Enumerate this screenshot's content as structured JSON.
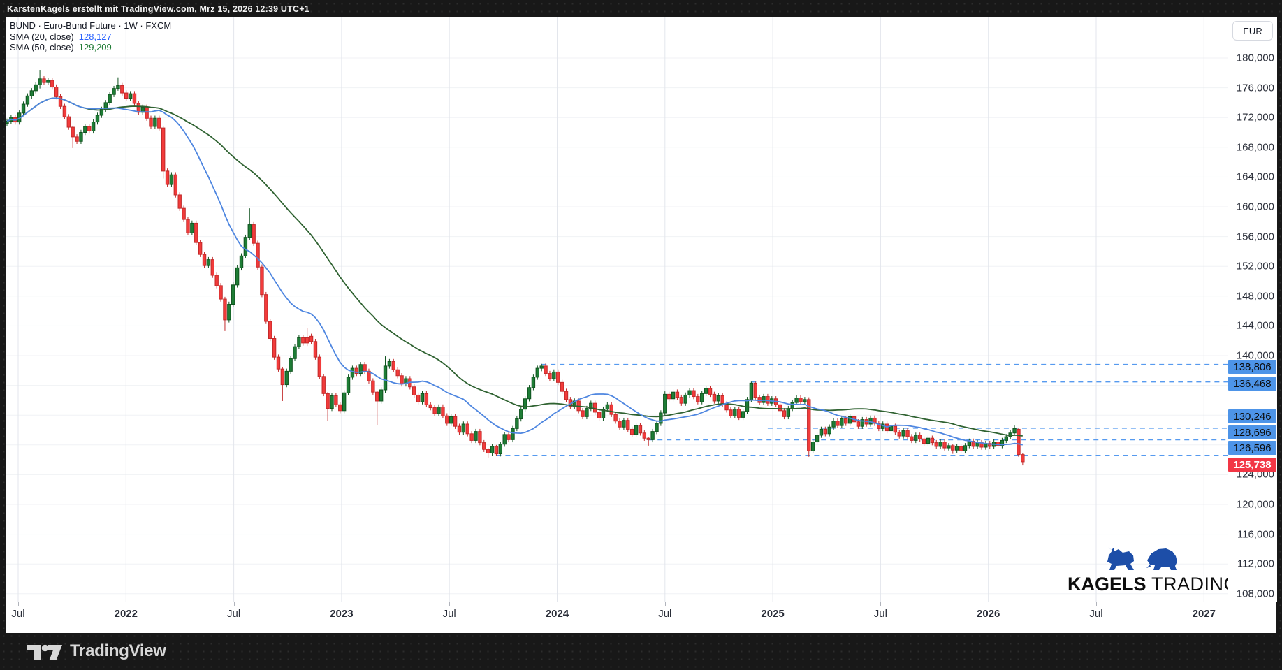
{
  "frame": {
    "top_caption": "KarstenKagels erstellt mit TradingView.com, Mrz 15, 2026 12:39 UTC+1",
    "tradingview_wordmark": "TradingView"
  },
  "legend": {
    "symbol_line": "BUND · Euro-Bund Future · 1W · FXCM",
    "sma20_label": "SMA (20, close)",
    "sma20_value": "128,127",
    "sma50_label": "SMA (50, close)",
    "sma50_value": "129,209"
  },
  "price_axis": {
    "currency_button": "EUR",
    "tick_labels": [
      "180,000",
      "176,000",
      "172,000",
      "168,000",
      "164,000",
      "160,000",
      "156,000",
      "152,000",
      "148,000",
      "144,000",
      "140,000",
      "136,000",
      "132,000",
      "128,000",
      "124,000",
      "120,000",
      "116,000",
      "112,000",
      "108,000"
    ]
  },
  "time_axis": {
    "labels": [
      "Jul",
      "2022",
      "Jul",
      "2023",
      "Jul",
      "2024",
      "Jul",
      "2025",
      "Jul",
      "2026",
      "Jul",
      "2027"
    ],
    "bold_flags": [
      false,
      true,
      false,
      true,
      false,
      true,
      false,
      true,
      false,
      true,
      false,
      true
    ]
  },
  "branding": {
    "brand_bold": "KAGELS",
    "brand_light": "TRADING"
  },
  "colors": {
    "up_fill": "#1e7d36",
    "up_border": "#10541f",
    "down_fill": "#f23b3b",
    "down_border": "#c22a2a",
    "sma20": "#4e86e0",
    "sma50": "#2f6231",
    "level_line": "#569aef",
    "level_label_bg": "#4d94e8",
    "level_label_text": "#0c0c0c",
    "last_label_bg": "#f23645",
    "last_label_text": "#ffffff",
    "grid_vertical": "#e3e6ec",
    "grid_horizontal": "#f0f2f5",
    "brand_blue": "#1d4ea8"
  },
  "chart_data": {
    "type": "candlestick",
    "symbol": "BUND Euro-Bund Future",
    "interval": "1W",
    "exchange": "FXCM",
    "unit": "EUR",
    "y_axis": {
      "top_tick": 180.0,
      "bottom_tick": 108.0,
      "tick_step": 4.0,
      "grid": true
    },
    "x_axis": {
      "first_label": "Jul 2021",
      "last_label": "2027",
      "grid": true
    },
    "first_open": 171.2,
    "default_wick": 0.35,
    "closes": [
      171.5,
      172.0,
      171.4,
      172.6,
      173.8,
      174.9,
      175.6,
      176.4,
      177.2,
      176.7,
      177.0,
      176.1,
      174.8,
      173.5,
      172.1,
      170.7,
      169.4,
      168.8,
      170.0,
      170.8,
      170.2,
      171.4,
      172.3,
      173.1,
      174.0,
      175.1,
      175.9,
      176.3,
      175.3,
      174.6,
      175.2,
      173.9,
      172.7,
      173.4,
      171.9,
      170.8,
      171.9,
      170.6,
      164.8,
      163.0,
      164.3,
      161.6,
      159.8,
      158.3,
      156.5,
      157.8,
      155.2,
      153.6,
      152.1,
      152.9,
      150.8,
      149.4,
      147.6,
      144.8,
      146.9,
      149.5,
      151.8,
      153.4,
      155.9,
      157.6,
      155.1,
      151.9,
      148.2,
      144.6,
      142.3,
      139.8,
      138.2,
      136.1,
      137.9,
      139.6,
      141.2,
      142.4,
      141.7,
      142.6,
      141.9,
      139.8,
      137.2,
      134.9,
      132.9,
      134.6,
      133.4,
      132.6,
      135.0,
      137.1,
      138.3,
      137.6,
      138.8,
      137.9,
      136.6,
      135.1,
      133.9,
      135.4,
      138.6,
      139.2,
      138.1,
      137.3,
      136.2,
      136.9,
      135.8,
      134.7,
      133.8,
      134.9,
      133.4,
      133.0,
      132.2,
      133.1,
      131.9,
      130.9,
      131.8,
      130.5,
      129.7,
      130.8,
      129.5,
      128.6,
      129.8,
      128.3,
      127.4,
      126.9,
      127.8,
      126.8,
      128.1,
      129.4,
      128.7,
      130.2,
      131.5,
      132.8,
      134.2,
      135.7,
      137.1,
      138.3,
      138.6,
      137.6,
      136.9,
      137.8,
      136.4,
      135.2,
      134.1,
      133.2,
      133.9,
      132.6,
      131.8,
      132.9,
      133.6,
      132.4,
      131.6,
      132.8,
      133.4,
      132.1,
      131.2,
      130.4,
      131.3,
      130.1,
      129.4,
      130.6,
      129.6,
      128.9,
      128.7,
      129.8,
      130.9,
      132.3,
      134.8,
      134.2,
      135.1,
      134.4,
      133.6,
      134.7,
      135.3,
      134.5,
      133.8,
      134.9,
      135.6,
      134.8,
      133.9,
      134.6,
      133.5,
      132.7,
      131.9,
      132.8,
      131.7,
      132.5,
      134.1,
      136.3,
      134.4,
      133.7,
      134.5,
      133.6,
      134.2,
      133.4,
      132.6,
      131.8,
      132.9,
      133.7,
      134.3,
      133.8,
      134.1,
      127.2,
      128.4,
      129.3,
      130.1,
      129.5,
      130.4,
      131.2,
      130.6,
      131.5,
      130.9,
      131.8,
      131.1,
      130.5,
      131.4,
      130.8,
      131.6,
      130.9,
      130.2,
      130.8,
      129.9,
      130.5,
      129.7,
      129.2,
      129.9,
      129.1,
      128.6,
      129.3,
      128.8,
      128.2,
      128.9,
      128.3,
      127.8,
      128.4,
      127.6,
      127.9,
      127.3,
      127.8,
      127.2,
      127.9,
      128.5,
      127.8,
      128.3,
      127.7,
      128.2,
      127.8,
      128.4,
      127.9,
      128.6,
      129.1,
      129.6,
      130.2,
      126.7,
      125.738
    ],
    "candle_overrides": {
      "8": [
        176.4,
        178.4,
        175.9,
        177.2
      ],
      "16": [
        170.7,
        170.9,
        167.9,
        169.4
      ],
      "27": [
        175.9,
        177.4,
        175.6,
        176.3
      ],
      "38": [
        170.6,
        170.9,
        163.8,
        164.8
      ],
      "53": [
        147.6,
        147.9,
        143.3,
        144.8
      ],
      "59": [
        155.9,
        159.8,
        155.5,
        157.6
      ],
      "67": [
        138.2,
        138.5,
        133.9,
        136.1
      ],
      "73": [
        142.4,
        143.7,
        141.3,
        141.7
      ],
      "78": [
        134.9,
        135.1,
        131.2,
        132.9
      ],
      "90": [
        135.1,
        135.3,
        130.7,
        133.9
      ],
      "92": [
        135.4,
        139.9,
        135.0,
        138.6
      ],
      "117": [
        127.4,
        127.6,
        126.3,
        126.9
      ],
      "119": [
        127.8,
        128.0,
        126.5,
        126.8
      ],
      "130": [
        138.3,
        138.9,
        137.9,
        138.6
      ],
      "156": [
        128.9,
        129.1,
        127.9,
        128.7
      ],
      "160": [
        132.3,
        135.2,
        132.0,
        134.8
      ],
      "181": [
        134.1,
        136.5,
        133.8,
        136.3
      ],
      "182": [
        136.3,
        136.5,
        134.1,
        134.4
      ],
      "195": [
        134.1,
        134.4,
        126.4,
        127.2
      ],
      "230": [
        127.9,
        128.1,
        126.8,
        127.3
      ],
      "245": [
        129.6,
        130.6,
        129.4,
        130.2
      ],
      "246": [
        130.1,
        130.3,
        126.4,
        126.7
      ],
      "247": [
        126.7,
        126.9,
        125.25,
        125.738
      ]
    },
    "overlays": [
      {
        "name": "SMA 20",
        "period": 20,
        "current_value": 128.127
      },
      {
        "name": "SMA 50",
        "period": 50,
        "current_value": 129.209
      }
    ],
    "levels": [
      {
        "label": "138,806",
        "price": 138.806,
        "from_index": 130
      },
      {
        "label": "136,468",
        "price": 136.468,
        "from_index": 181
      },
      {
        "label": "130,246",
        "price": 130.246,
        "from_index": 185
      },
      {
        "label": "128,696",
        "price": 128.696,
        "from_index": 156
      },
      {
        "label": "126,596",
        "price": 126.596,
        "from_index": 119
      }
    ],
    "last_price": {
      "label": "125,738",
      "price": 125.738,
      "direction": "down"
    }
  }
}
